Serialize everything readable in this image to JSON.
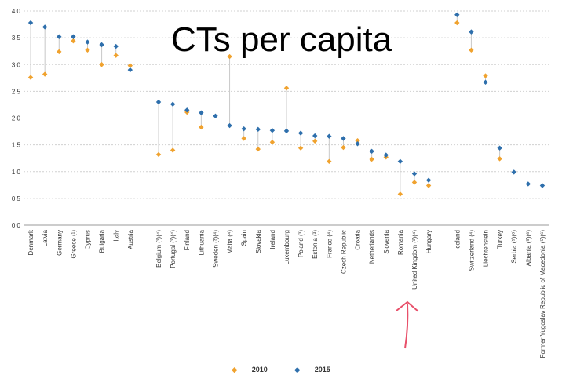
{
  "chart_data": {
    "type": "scatter",
    "title": "CTs per capita",
    "ylim": [
      0,
      4
    ],
    "yticks": [
      "0,0",
      "0,5",
      "1,0",
      "1,5",
      "2,0",
      "2,5",
      "3,0",
      "3,5",
      "4,0"
    ],
    "grid": true,
    "legend_position": "bottom-center",
    "categories": [
      "Denmark",
      "Latvia",
      "Germany",
      "Greece (¹)",
      "Cyprus",
      "Bulgaria",
      "Italy",
      "Austria",
      "",
      "Belgium (³)(⁴)",
      "Portugal (³)(⁴)",
      "Finland",
      "Lithuania",
      "Sweden (³)(⁴)",
      "Malta (⁴)",
      "Spain",
      "Slovakia",
      "Ireland",
      "Luxembourg",
      "Poland (³)",
      "Estonia (³)",
      "France (⁴)",
      "Czech Republic",
      "Croatia",
      "Netherlands",
      "Slovenia",
      "Romania",
      "United Kingdom (³)(⁴)",
      "Hungary",
      "",
      "Iceland",
      "Switzerland (⁴)",
      "Liechtenstein",
      "Turkey",
      "Serbia (⁵)(⁶)",
      "Albania (⁵)(⁶)",
      "Former Yugoslav Republic of Macedonia (⁵)(⁶)"
    ],
    "series": [
      {
        "name": "2010",
        "color": "#f0a22e",
        "marker": "diamond",
        "values": [
          2.76,
          2.82,
          3.24,
          3.44,
          3.27,
          3.0,
          3.17,
          2.98,
          null,
          1.32,
          1.4,
          2.11,
          1.83,
          null,
          3.15,
          1.62,
          1.42,
          1.55,
          2.56,
          1.44,
          1.57,
          1.19,
          1.45,
          1.58,
          1.23,
          1.27,
          0.58,
          0.8,
          0.74,
          null,
          3.78,
          3.27,
          2.79,
          1.24,
          null,
          null,
          null
        ]
      },
      {
        "name": "2015",
        "color": "#2e6fac",
        "marker": "diamond",
        "values": [
          3.78,
          3.7,
          3.52,
          3.52,
          3.42,
          3.37,
          3.34,
          2.9,
          null,
          2.3,
          2.26,
          2.15,
          2.1,
          2.04,
          1.86,
          1.8,
          1.79,
          1.77,
          1.76,
          1.72,
          1.67,
          1.66,
          1.62,
          1.52,
          1.38,
          1.31,
          1.19,
          0.96,
          0.84,
          null,
          3.93,
          3.61,
          2.67,
          1.44,
          0.99,
          0.77,
          0.74
        ]
      }
    ],
    "annotation": "red arrow pointing up at United Kingdom"
  }
}
